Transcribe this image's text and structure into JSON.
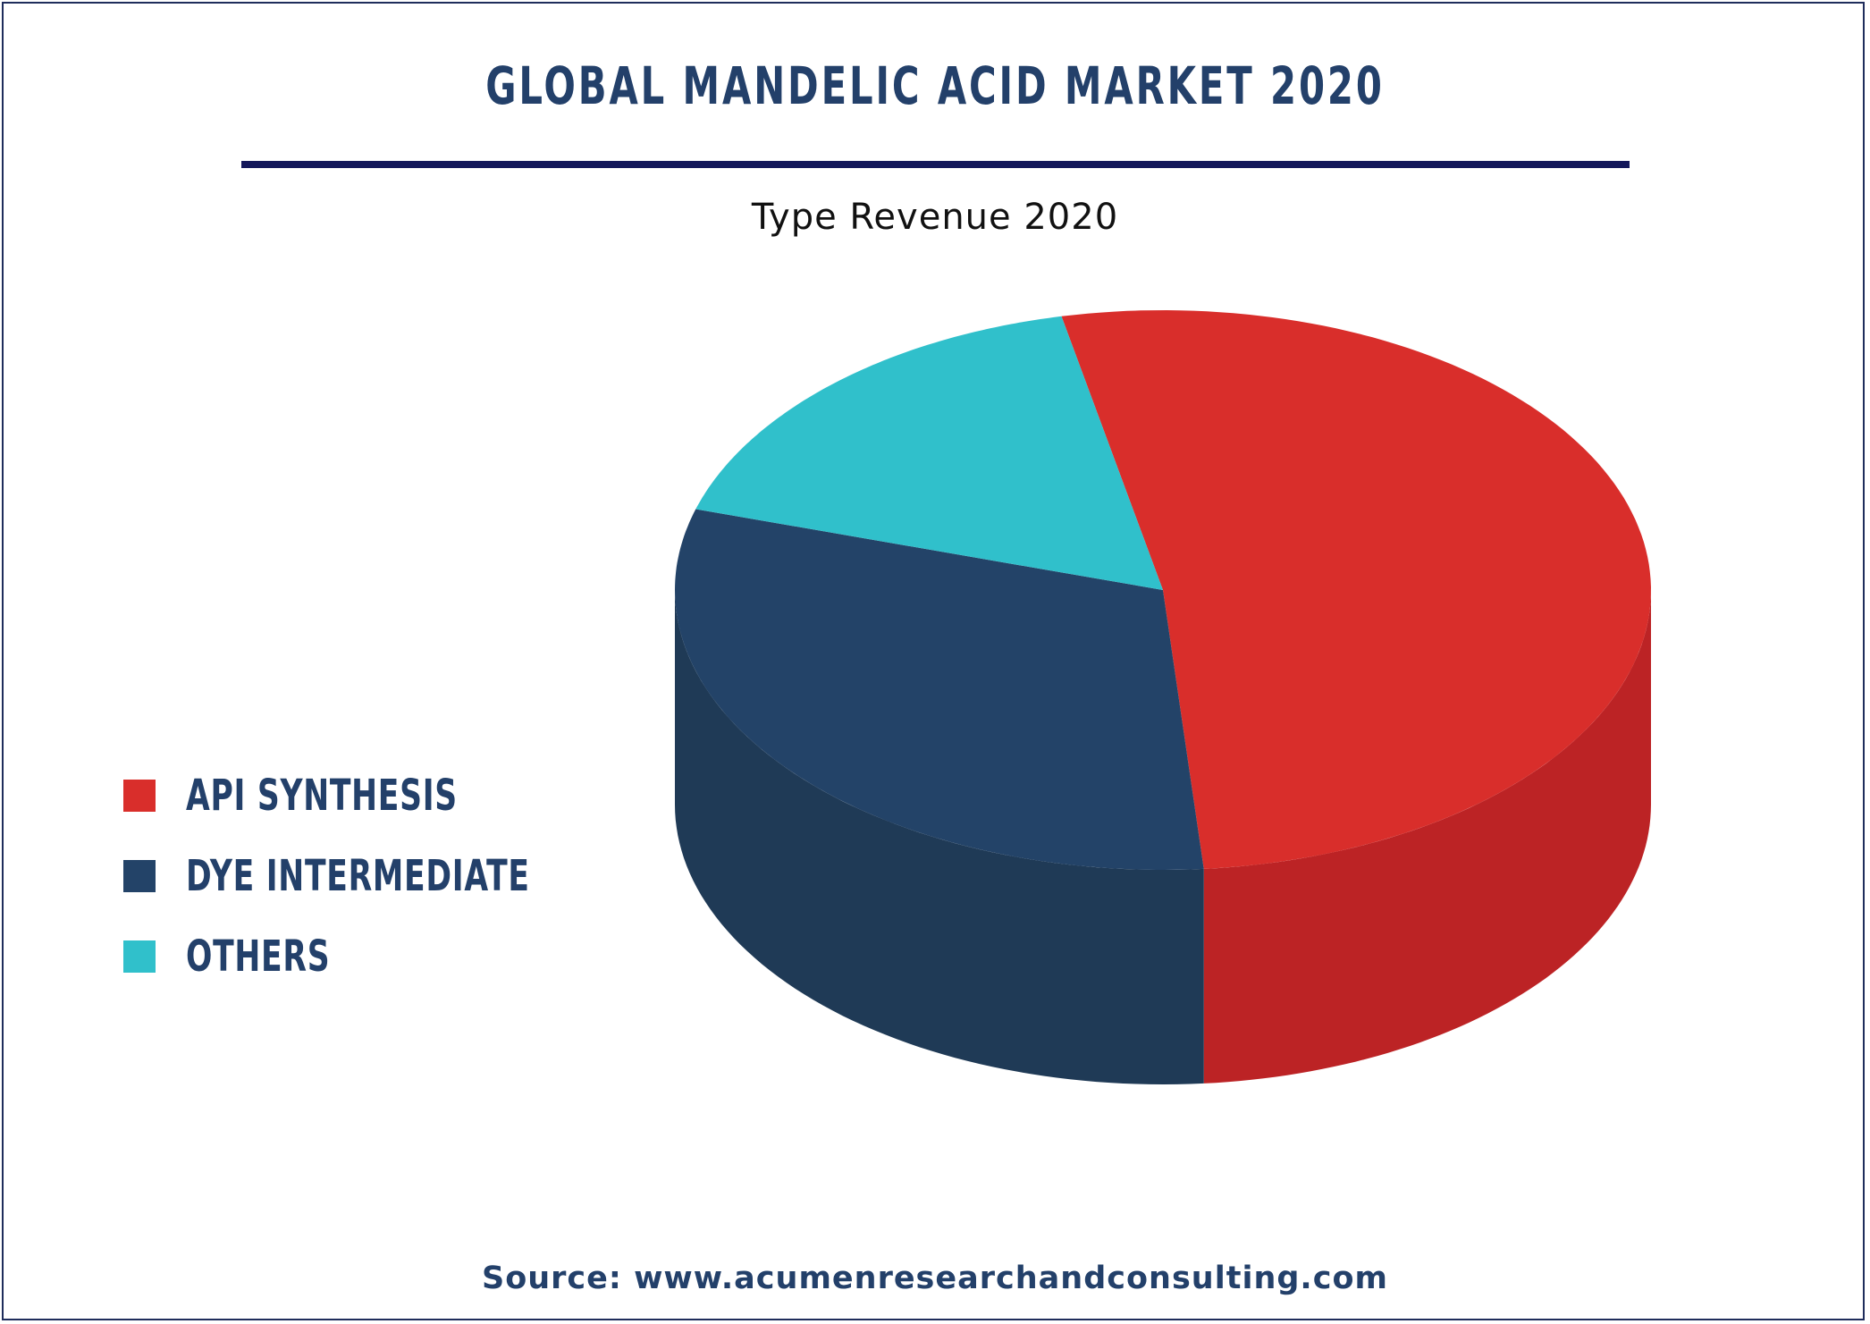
{
  "title": "GLOBAL MANDELIC ACID MARKET 2020",
  "subtitle": "Type Revenue 2020",
  "source": "Source: www.acumenresearchandconsulting.com",
  "chart_data": {
    "type": "pie",
    "style": "3d",
    "title": "Type Revenue 2020",
    "categories": [
      "API SYNTHESIS",
      "DYE INTERMEDIATE",
      "OTHERS"
    ],
    "values": [
      52,
      31,
      17
    ],
    "unit": "%",
    "legend_position": "left",
    "colors": {
      "API SYNTHESIS": {
        "top": "#d92e2b",
        "side": "#bc2325"
      },
      "DYE INTERMEDIATE": {
        "top": "#234368",
        "side": "#1f3a56"
      },
      "OTHERS": {
        "top": "#30c0cb",
        "side": "#1e989c"
      }
    }
  }
}
